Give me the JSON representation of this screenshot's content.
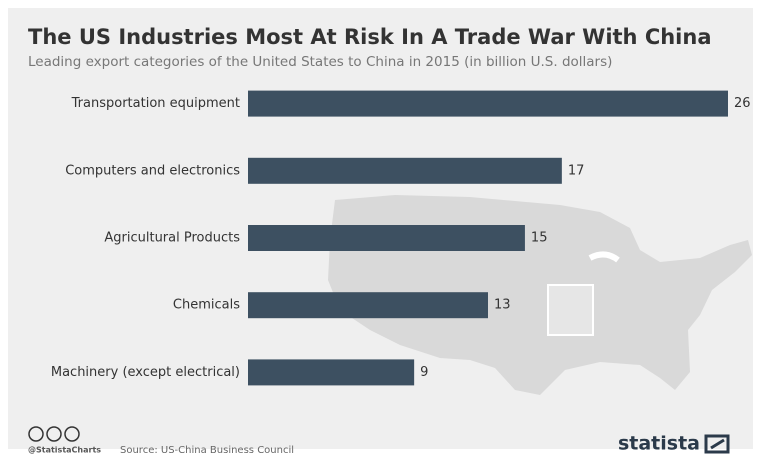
{
  "chart_data": {
    "type": "bar",
    "orientation": "horizontal",
    "title": "The US Industries Most At Risk In A Trade War With China",
    "subtitle": "Leading export categories of the United States to China in 2015 (in billion U.S. dollars)",
    "categories": [
      "Transportation equipment",
      "Computers and electronics",
      "Agricultural Products",
      "Chemicals",
      "Machinery (except electrical)"
    ],
    "values": [
      26,
      17,
      15,
      13,
      9
    ],
    "color": "#3d5061",
    "footer": {
      "handle": "@StatistaCharts",
      "source": "Source: US-China Business Council",
      "brand": "statista"
    }
  }
}
